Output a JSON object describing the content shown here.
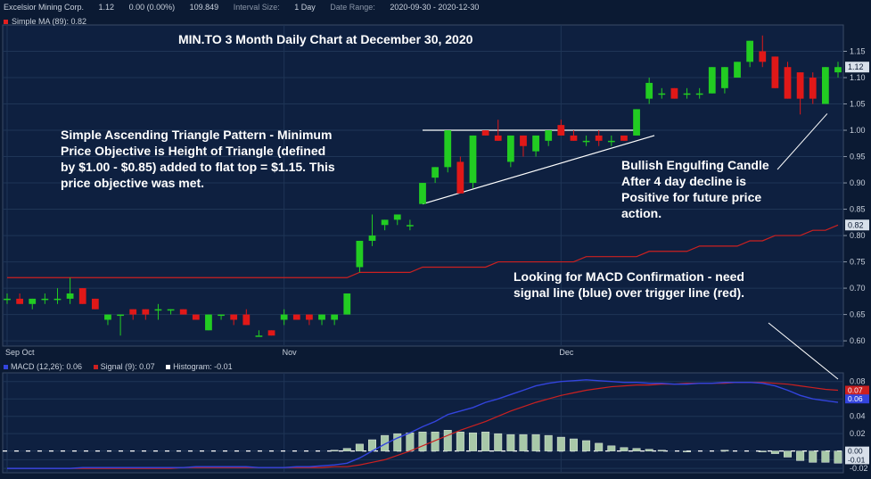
{
  "header": {
    "company": "Excelsior Mining Corp.",
    "last": "1.12",
    "change": "0.00 (0.00%)",
    "volume": "109.849",
    "interval_label": "Interval Size:",
    "interval_value": "1 Day",
    "range_label": "Date Range:",
    "range_value": "2020-09-30 - 2020-12-30"
  },
  "ma_legend": "Simple MA (89): 0.82",
  "title": "MIN.TO 3 Month Daily Chart at December 30, 2020",
  "annotations": {
    "pattern": "Simple Ascending Triangle Pattern - Minimum\nPrice Objective is Height of Triangle (defined\nby $1.00 - $0.85) added to flat top = $1.15.  This\nprice objective was met.",
    "engulfing": "Bullish Engulfing Candle\nAfter 4 day decline is\nPositive for future price\naction.",
    "macd": "Looking for MACD Confirmation - need\nsignal line (blue) over trigger line (red)."
  },
  "macd_legend": {
    "macd": "MACD (12,26): 0.06",
    "signal": "Signal (9): 0.07",
    "histogram": "Histogram: -0.01"
  },
  "colors": {
    "up": "#22cc22",
    "down": "#e01818",
    "bg": "#0b1a33",
    "ma": "#cc2020",
    "macd": "#3344dd",
    "signal": "#cc2020",
    "hist": "#a8c8a8"
  },
  "chart_data": [
    {
      "type": "candlestick",
      "x_labels": [
        "Sep Oct",
        "Nov",
        "Dec"
      ],
      "y_ticks": [
        0.6,
        0.65,
        0.7,
        0.75,
        0.8,
        0.85,
        0.9,
        0.95,
        1.0,
        1.05,
        1.1,
        1.15
      ],
      "ylim": [
        0.59,
        1.2
      ],
      "price_badge": "1.12",
      "ma_badge": "0.82",
      "candles": [
        {
          "o": 0.68,
          "h": 0.69,
          "l": 0.67,
          "c": 0.68
        },
        {
          "o": 0.68,
          "h": 0.69,
          "l": 0.67,
          "c": 0.67
        },
        {
          "o": 0.67,
          "h": 0.68,
          "l": 0.66,
          "c": 0.68
        },
        {
          "o": 0.68,
          "h": 0.69,
          "l": 0.67,
          "c": 0.68
        },
        {
          "o": 0.68,
          "h": 0.7,
          "l": 0.67,
          "c": 0.68
        },
        {
          "o": 0.68,
          "h": 0.72,
          "l": 0.67,
          "c": 0.69
        },
        {
          "o": 0.7,
          "h": 0.7,
          "l": 0.67,
          "c": 0.67
        },
        {
          "o": 0.68,
          "h": 0.68,
          "l": 0.66,
          "c": 0.66
        },
        {
          "o": 0.64,
          "h": 0.65,
          "l": 0.63,
          "c": 0.65
        },
        {
          "o": 0.65,
          "h": 0.65,
          "l": 0.61,
          "c": 0.65
        },
        {
          "o": 0.66,
          "h": 0.66,
          "l": 0.64,
          "c": 0.65
        },
        {
          "o": 0.66,
          "h": 0.66,
          "l": 0.64,
          "c": 0.65
        },
        {
          "o": 0.66,
          "h": 0.67,
          "l": 0.64,
          "c": 0.66
        },
        {
          "o": 0.66,
          "h": 0.66,
          "l": 0.65,
          "c": 0.66
        },
        {
          "o": 0.66,
          "h": 0.66,
          "l": 0.65,
          "c": 0.65
        },
        {
          "o": 0.65,
          "h": 0.65,
          "l": 0.64,
          "c": 0.64
        },
        {
          "o": 0.62,
          "h": 0.65,
          "l": 0.62,
          "c": 0.65
        },
        {
          "o": 0.65,
          "h": 0.65,
          "l": 0.64,
          "c": 0.65
        },
        {
          "o": 0.65,
          "h": 0.65,
          "l": 0.63,
          "c": 0.64
        },
        {
          "o": 0.65,
          "h": 0.66,
          "l": 0.63,
          "c": 0.63
        },
        {
          "o": 0.61,
          "h": 0.62,
          "l": 0.61,
          "c": 0.61
        },
        {
          "o": 0.62,
          "h": 0.62,
          "l": 0.61,
          "c": 0.61
        },
        {
          "o": 0.64,
          "h": 0.66,
          "l": 0.63,
          "c": 0.65
        },
        {
          "o": 0.65,
          "h": 0.65,
          "l": 0.64,
          "c": 0.64
        },
        {
          "o": 0.65,
          "h": 0.65,
          "l": 0.63,
          "c": 0.64
        },
        {
          "o": 0.64,
          "h": 0.65,
          "l": 0.63,
          "c": 0.65
        },
        {
          "o": 0.64,
          "h": 0.65,
          "l": 0.63,
          "c": 0.65
        },
        {
          "o": 0.65,
          "h": 0.69,
          "l": 0.65,
          "c": 0.69
        },
        {
          "o": 0.74,
          "h": 0.79,
          "l": 0.73,
          "c": 0.79
        },
        {
          "o": 0.79,
          "h": 0.84,
          "l": 0.78,
          "c": 0.8
        },
        {
          "o": 0.82,
          "h": 0.83,
          "l": 0.81,
          "c": 0.83
        },
        {
          "o": 0.83,
          "h": 0.84,
          "l": 0.82,
          "c": 0.84
        },
        {
          "o": 0.82,
          "h": 0.83,
          "l": 0.81,
          "c": 0.82
        },
        {
          "o": 0.86,
          "h": 0.9,
          "l": 0.86,
          "c": 0.9
        },
        {
          "o": 0.91,
          "h": 0.93,
          "l": 0.9,
          "c": 0.93
        },
        {
          "o": 0.93,
          "h": 1.0,
          "l": 0.92,
          "c": 1.0
        },
        {
          "o": 0.94,
          "h": 0.95,
          "l": 0.88,
          "c": 0.88
        },
        {
          "o": 0.9,
          "h": 0.99,
          "l": 0.89,
          "c": 0.99
        },
        {
          "o": 1.0,
          "h": 1.0,
          "l": 0.99,
          "c": 0.99
        },
        {
          "o": 0.99,
          "h": 1.02,
          "l": 0.98,
          "c": 0.98
        },
        {
          "o": 0.94,
          "h": 0.99,
          "l": 0.93,
          "c": 0.99
        },
        {
          "o": 0.99,
          "h": 0.99,
          "l": 0.95,
          "c": 0.97
        },
        {
          "o": 0.96,
          "h": 0.99,
          "l": 0.95,
          "c": 0.99
        },
        {
          "o": 0.98,
          "h": 1.0,
          "l": 0.97,
          "c": 1.0
        },
        {
          "o": 1.01,
          "h": 1.02,
          "l": 0.99,
          "c": 0.99
        },
        {
          "o": 0.99,
          "h": 1.0,
          "l": 0.98,
          "c": 0.98
        },
        {
          "o": 0.98,
          "h": 0.99,
          "l": 0.97,
          "c": 0.98
        },
        {
          "o": 0.99,
          "h": 1.0,
          "l": 0.97,
          "c": 0.98
        },
        {
          "o": 0.98,
          "h": 0.99,
          "l": 0.97,
          "c": 0.98
        },
        {
          "o": 0.99,
          "h": 0.99,
          "l": 0.98,
          "c": 0.98
        },
        {
          "o": 0.99,
          "h": 1.04,
          "l": 0.99,
          "c": 1.04
        },
        {
          "o": 1.06,
          "h": 1.1,
          "l": 1.05,
          "c": 1.09
        },
        {
          "o": 1.07,
          "h": 1.08,
          "l": 1.06,
          "c": 1.07
        },
        {
          "o": 1.08,
          "h": 1.08,
          "l": 1.06,
          "c": 1.06
        },
        {
          "o": 1.07,
          "h": 1.08,
          "l": 1.06,
          "c": 1.07
        },
        {
          "o": 1.07,
          "h": 1.08,
          "l": 1.06,
          "c": 1.07
        },
        {
          "o": 1.07,
          "h": 1.12,
          "l": 1.07,
          "c": 1.12
        },
        {
          "o": 1.08,
          "h": 1.12,
          "l": 1.07,
          "c": 1.12
        },
        {
          "o": 1.1,
          "h": 1.13,
          "l": 1.1,
          "c": 1.13
        },
        {
          "o": 1.13,
          "h": 1.17,
          "l": 1.12,
          "c": 1.17
        },
        {
          "o": 1.15,
          "h": 1.18,
          "l": 1.12,
          "c": 1.13
        },
        {
          "o": 1.14,
          "h": 1.14,
          "l": 1.08,
          "c": 1.08
        },
        {
          "o": 1.12,
          "h": 1.13,
          "l": 1.06,
          "c": 1.06
        },
        {
          "o": 1.11,
          "h": 1.11,
          "l": 1.03,
          "c": 1.06
        },
        {
          "o": 1.1,
          "h": 1.11,
          "l": 1.05,
          "c": 1.06
        },
        {
          "o": 1.05,
          "h": 1.12,
          "l": 1.05,
          "c": 1.12
        },
        {
          "o": 1.11,
          "h": 1.13,
          "l": 1.1,
          "c": 1.12
        }
      ],
      "sma89": [
        0.72,
        0.72,
        0.72,
        0.72,
        0.72,
        0.72,
        0.72,
        0.72,
        0.72,
        0.72,
        0.72,
        0.72,
        0.72,
        0.72,
        0.72,
        0.72,
        0.72,
        0.72,
        0.72,
        0.72,
        0.72,
        0.72,
        0.72,
        0.72,
        0.72,
        0.72,
        0.72,
        0.72,
        0.73,
        0.73,
        0.73,
        0.73,
        0.73,
        0.74,
        0.74,
        0.74,
        0.74,
        0.74,
        0.74,
        0.75,
        0.75,
        0.75,
        0.75,
        0.75,
        0.75,
        0.75,
        0.76,
        0.76,
        0.76,
        0.76,
        0.76,
        0.77,
        0.77,
        0.77,
        0.77,
        0.78,
        0.78,
        0.78,
        0.78,
        0.79,
        0.79,
        0.8,
        0.8,
        0.8,
        0.81,
        0.81,
        0.82
      ],
      "triangle": {
        "flat_top": 1.0,
        "start_index": 33,
        "end_index": 50,
        "base_start": 0.86,
        "base_end": 0.99
      }
    },
    {
      "type": "macd",
      "y_ticks": [
        -0.02,
        -0.01,
        0.0,
        0.02,
        0.04,
        0.06,
        0.08
      ],
      "ylim": [
        -0.025,
        0.09
      ],
      "badges": {
        "signal": "0.07",
        "macd": "0.06",
        "zero": "0.00",
        "hist": "-0.01"
      },
      "macd": [
        -0.02,
        -0.02,
        -0.02,
        -0.02,
        -0.02,
        -0.02,
        -0.019,
        -0.019,
        -0.019,
        -0.019,
        -0.019,
        -0.019,
        -0.019,
        -0.019,
        -0.019,
        -0.018,
        -0.018,
        -0.018,
        -0.018,
        -0.018,
        -0.019,
        -0.019,
        -0.019,
        -0.018,
        -0.018,
        -0.017,
        -0.016,
        -0.014,
        -0.008,
        0.0,
        0.008,
        0.015,
        0.021,
        0.028,
        0.034,
        0.042,
        0.046,
        0.05,
        0.056,
        0.06,
        0.065,
        0.07,
        0.075,
        0.078,
        0.08,
        0.081,
        0.082,
        0.081,
        0.08,
        0.079,
        0.079,
        0.078,
        0.078,
        0.077,
        0.077,
        0.078,
        0.078,
        0.079,
        0.079,
        0.079,
        0.078,
        0.075,
        0.07,
        0.064,
        0.06,
        0.058,
        0.056
      ],
      "signal": [
        -0.02,
        -0.02,
        -0.02,
        -0.02,
        -0.02,
        -0.02,
        -0.02,
        -0.02,
        -0.02,
        -0.02,
        -0.02,
        -0.02,
        -0.02,
        -0.02,
        -0.019,
        -0.019,
        -0.019,
        -0.019,
        -0.019,
        -0.019,
        -0.019,
        -0.019,
        -0.019,
        -0.019,
        -0.019,
        -0.019,
        -0.018,
        -0.018,
        -0.016,
        -0.013,
        -0.01,
        -0.005,
        0.0,
        0.006,
        0.012,
        0.018,
        0.024,
        0.029,
        0.034,
        0.04,
        0.046,
        0.051,
        0.056,
        0.06,
        0.064,
        0.067,
        0.07,
        0.072,
        0.074,
        0.075,
        0.076,
        0.076,
        0.077,
        0.077,
        0.078,
        0.078,
        0.078,
        0.078,
        0.079,
        0.079,
        0.079,
        0.078,
        0.077,
        0.075,
        0.073,
        0.071,
        0.07
      ],
      "histogram": [
        0.0,
        0.0,
        0.0,
        0.0,
        0.0,
        0.0,
        0.0,
        0.0,
        0.0,
        0.0,
        0.0,
        0.0,
        0.0,
        0.0,
        0.0,
        0.0,
        0.0,
        0.0,
        0.0,
        0.0,
        0.0,
        0.0,
        0.0,
        0.0,
        0.0,
        0.0,
        0.001,
        0.003,
        0.008,
        0.013,
        0.018,
        0.02,
        0.021,
        0.022,
        0.022,
        0.024,
        0.022,
        0.021,
        0.022,
        0.02,
        0.019,
        0.019,
        0.019,
        0.018,
        0.016,
        0.014,
        0.012,
        0.009,
        0.006,
        0.004,
        0.003,
        0.002,
        0.001,
        0.0,
        -0.001,
        0.0,
        0.0,
        0.001,
        0.0,
        0.0,
        -0.001,
        -0.003,
        -0.007,
        -0.011,
        -0.013,
        -0.013,
        -0.014
      ]
    }
  ]
}
